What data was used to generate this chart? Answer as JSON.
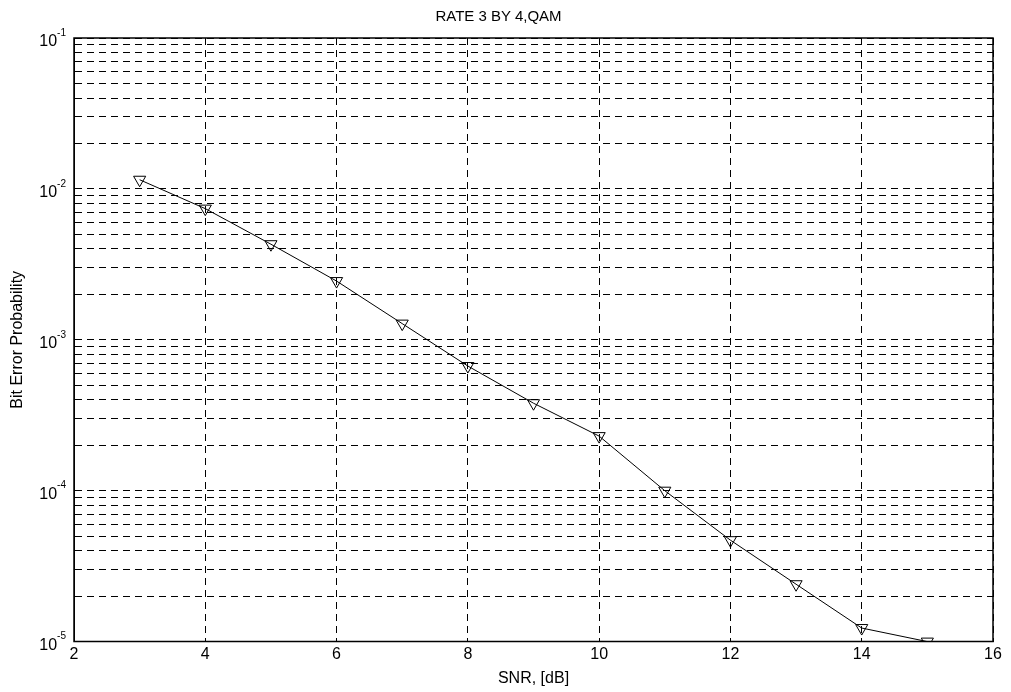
{
  "chart_data": {
    "type": "line",
    "title": "RATE 3 BY 4,QAM",
    "xlabel": "SNR, [dB]",
    "ylabel": "Bit Error Probability",
    "x": [
      3,
      4,
      5,
      6,
      7,
      8,
      9,
      10,
      11,
      12,
      13,
      14,
      15
    ],
    "series": [
      {
        "color": "#000000",
        "values": [
          0.0115,
          0.0074,
          0.0043,
          0.00245,
          0.00128,
          0.00067,
          0.00038,
          0.00023,
          0.0001,
          4.7e-05,
          2.4e-05,
          1.23e-05,
          1e-05
        ]
      }
    ],
    "log": "y",
    "xlim": [
      2,
      16
    ],
    "xticks": [
      2,
      4,
      6,
      8,
      10,
      12,
      14,
      16
    ],
    "ylim": [
      1e-05,
      0.1
    ],
    "yticks": [
      {
        "value": 1e-05,
        "label": "10$^{-5}$"
      },
      {
        "value": 2e-05,
        "label": null
      },
      {
        "value": 3e-05,
        "label": null
      },
      {
        "value": 4e-05,
        "label": null
      },
      {
        "value": 5e-05,
        "label": null
      },
      {
        "value": 6e-05,
        "label": null
      },
      {
        "value": 7e-05,
        "label": null
      },
      {
        "value": 8e-05,
        "label": null
      },
      {
        "value": 9e-05,
        "label": null
      },
      {
        "value": 0.0001,
        "label": "10$^{-4}$"
      },
      {
        "value": 0.0002,
        "label": null
      },
      {
        "value": 0.0003,
        "label": null
      },
      {
        "value": 0.0004,
        "label": null
      },
      {
        "value": 0.0005,
        "label": null
      },
      {
        "value": 0.0006,
        "label": null
      },
      {
        "value": 0.0007,
        "label": null
      },
      {
        "value": 0.0008,
        "label": null
      },
      {
        "value": 0.0009,
        "label": null
      },
      {
        "value": 0.001,
        "label": "10$^{-3}$"
      },
      {
        "value": 0.002,
        "label": null
      },
      {
        "value": 0.003,
        "label": null
      },
      {
        "value": 0.004,
        "label": null
      },
      {
        "value": 0.005,
        "label": null
      },
      {
        "value": 0.006,
        "label": null
      },
      {
        "value": 0.007,
        "label": null
      },
      {
        "value": 0.008,
        "label": null
      },
      {
        "value": 0.009,
        "label": null
      },
      {
        "value": 0.01,
        "label": "10$^{-2}$"
      },
      {
        "value": 0.02,
        "label": null
      },
      {
        "value": 0.03,
        "label": null
      },
      {
        "value": 0.04,
        "label": null
      },
      {
        "value": 0.05,
        "label": null
      },
      {
        "value": 0.06,
        "label": null
      },
      {
        "value": 0.07,
        "label": null
      },
      {
        "value": 0.08,
        "label": null
      },
      {
        "value": 0.09,
        "label": null
      },
      {
        "value": 0.1,
        "label": "10$^{-1}$"
      }
    ],
    "grid": true,
    "legend": false,
    "marker": "triangle",
    "line_style": "solid"
  }
}
